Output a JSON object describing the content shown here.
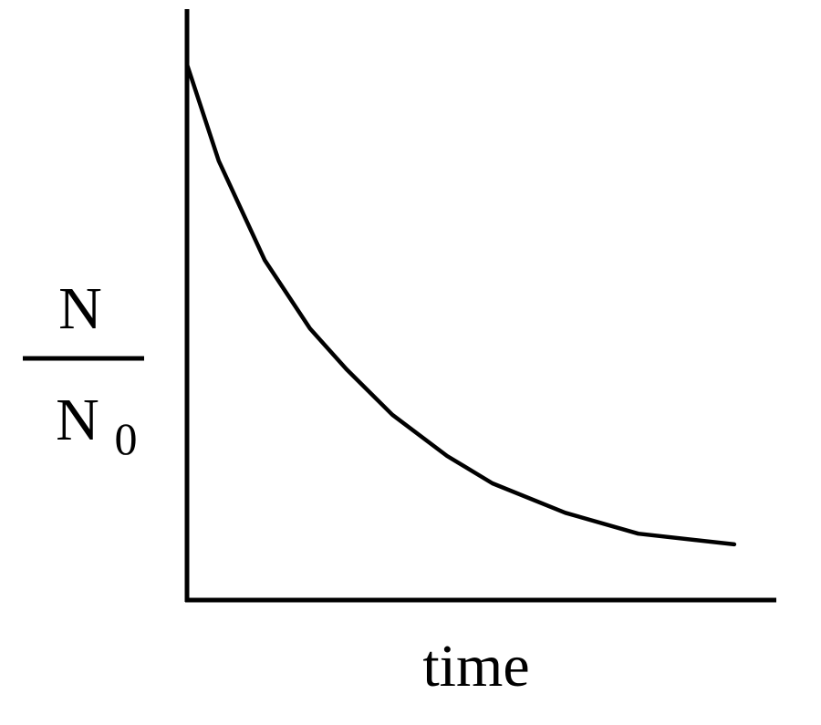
{
  "chart_data": {
    "type": "line",
    "xlabel": "time",
    "ylabel": {
      "numerator": "N",
      "denominator": "N",
      "subscript": "0"
    },
    "x": [
      0,
      0.054,
      0.132,
      0.209,
      0.271,
      0.349,
      0.442,
      0.519,
      0.643,
      0.767,
      0.93
    ],
    "values": [
      1.0,
      0.82,
      0.635,
      0.507,
      0.431,
      0.346,
      0.269,
      0.218,
      0.163,
      0.124,
      0.104
    ],
    "color": "#000000",
    "xlim": [
      0,
      1
    ],
    "ylim": [
      0,
      1.1
    ]
  }
}
